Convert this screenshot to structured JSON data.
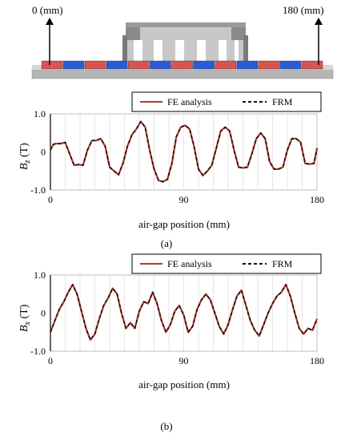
{
  "diagram": {
    "left_label": "0 (mm)",
    "right_label": "180 (mm)"
  },
  "colors": {
    "fe_line": "#b03a2e",
    "frm_line": "#111111",
    "magnet_red": "#d9534f",
    "magnet_blue": "#2a5bd7",
    "mover_gray": "#c8c8c8",
    "mover_dark": "#7a7a7a",
    "back_iron": "#b5b5b5",
    "grid": "#e6e6e6"
  },
  "chart_data": [
    {
      "type": "line",
      "id": "a",
      "caption": "(a)",
      "ylabel_main": "B",
      "ylabel_sub": "z",
      "ylabel_unit": " (T)",
      "xlabel": "air-gap position (mm)",
      "xlim": [
        0,
        180
      ],
      "ylim": [
        -1.0,
        1.0
      ],
      "xticks": [
        0,
        90,
        180
      ],
      "yticks": [
        1.0,
        0,
        -1.0
      ],
      "ytick_labels": [
        "1.0",
        "0",
        "-1.0"
      ],
      "grid": true,
      "legend_position": "top",
      "series": [
        {
          "name": "FE analysis",
          "style": "solid",
          "x": [
            0,
            2,
            4,
            7,
            10,
            13,
            16,
            19,
            22,
            25,
            28,
            31,
            34,
            37,
            40,
            43,
            46,
            49,
            52,
            55,
            58,
            61,
            64,
            67,
            70,
            73,
            76,
            79,
            82,
            85,
            88,
            91,
            94,
            97,
            100,
            103,
            106,
            109,
            112,
            115,
            118,
            121,
            124,
            127,
            130,
            133,
            136,
            139,
            142,
            145,
            148,
            151,
            154,
            157,
            160,
            163,
            166,
            169,
            172,
            175,
            178,
            180
          ],
          "values": [
            0.05,
            0.2,
            0.22,
            0.22,
            0.25,
            -0.05,
            -0.35,
            -0.33,
            -0.35,
            0.05,
            0.3,
            0.3,
            0.35,
            0.15,
            -0.4,
            -0.5,
            -0.6,
            -0.3,
            0.15,
            0.45,
            0.6,
            0.8,
            0.65,
            0.05,
            -0.45,
            -0.75,
            -0.78,
            -0.72,
            -0.3,
            0.4,
            0.65,
            0.7,
            0.6,
            0.15,
            -0.45,
            -0.62,
            -0.5,
            -0.35,
            0.1,
            0.55,
            0.65,
            0.55,
            0.05,
            -0.4,
            -0.42,
            -0.4,
            -0.05,
            0.35,
            0.5,
            0.35,
            -0.25,
            -0.45,
            -0.45,
            -0.4,
            0.05,
            0.35,
            0.35,
            0.25,
            -0.3,
            -0.32,
            -0.3,
            0.1
          ]
        },
        {
          "name": "FRM",
          "style": "dashed",
          "x": [
            0,
            2,
            4,
            7,
            10,
            13,
            16,
            19,
            22,
            25,
            28,
            31,
            34,
            37,
            40,
            43,
            46,
            49,
            52,
            55,
            58,
            61,
            64,
            67,
            70,
            73,
            76,
            79,
            82,
            85,
            88,
            91,
            94,
            97,
            100,
            103,
            106,
            109,
            112,
            115,
            118,
            121,
            124,
            127,
            130,
            133,
            136,
            139,
            142,
            145,
            148,
            151,
            154,
            157,
            160,
            163,
            166,
            169,
            172,
            175,
            178,
            180
          ],
          "values": [
            0.05,
            0.2,
            0.22,
            0.22,
            0.25,
            -0.05,
            -0.35,
            -0.33,
            -0.35,
            0.05,
            0.3,
            0.3,
            0.35,
            0.15,
            -0.4,
            -0.5,
            -0.6,
            -0.3,
            0.15,
            0.45,
            0.6,
            0.8,
            0.65,
            0.05,
            -0.45,
            -0.75,
            -0.78,
            -0.72,
            -0.3,
            0.4,
            0.65,
            0.7,
            0.6,
            0.15,
            -0.45,
            -0.62,
            -0.5,
            -0.35,
            0.1,
            0.55,
            0.65,
            0.55,
            0.05,
            -0.4,
            -0.42,
            -0.4,
            -0.05,
            0.35,
            0.5,
            0.35,
            -0.25,
            -0.45,
            -0.45,
            -0.4,
            0.05,
            0.35,
            0.35,
            0.25,
            -0.3,
            -0.32,
            -0.3,
            0.1
          ]
        }
      ]
    },
    {
      "type": "line",
      "id": "b",
      "caption": "(b)",
      "ylabel_main": "B",
      "ylabel_sub": "x",
      "ylabel_unit": " (T)",
      "xlabel": "air-gap position (mm)",
      "xlim": [
        0,
        180
      ],
      "ylim": [
        -1.0,
        1.0
      ],
      "xticks": [
        0,
        90,
        180
      ],
      "yticks": [
        1.0,
        0,
        -1.0
      ],
      "ytick_labels": [
        "1.0",
        "0",
        "-1.0"
      ],
      "grid": true,
      "legend_position": "top",
      "series": [
        {
          "name": "FE analysis",
          "style": "solid",
          "x": [
            0,
            3,
            6,
            9,
            12,
            15,
            18,
            21,
            24,
            27,
            30,
            33,
            36,
            39,
            42,
            45,
            48,
            51,
            54,
            57,
            60,
            63,
            66,
            69,
            72,
            75,
            78,
            81,
            84,
            87,
            90,
            93,
            96,
            99,
            102,
            105,
            108,
            111,
            114,
            117,
            120,
            123,
            126,
            129,
            132,
            135,
            138,
            141,
            144,
            147,
            150,
            153,
            156,
            159,
            162,
            165,
            168,
            171,
            174,
            177,
            180
          ],
          "values": [
            -0.5,
            -0.2,
            0.1,
            0.3,
            0.55,
            0.75,
            0.5,
            0.05,
            -0.4,
            -0.7,
            -0.55,
            -0.15,
            0.2,
            0.4,
            0.65,
            0.5,
            0.0,
            -0.4,
            -0.25,
            -0.4,
            0.05,
            0.3,
            0.25,
            0.55,
            0.25,
            -0.2,
            -0.5,
            -0.3,
            0.05,
            0.2,
            -0.05,
            -0.5,
            -0.35,
            0.1,
            0.35,
            0.5,
            0.35,
            0.0,
            -0.35,
            -0.55,
            -0.3,
            0.1,
            0.45,
            0.6,
            0.2,
            -0.2,
            -0.45,
            -0.6,
            -0.3,
            0.0,
            0.25,
            0.45,
            0.55,
            0.75,
            0.45,
            0.0,
            -0.4,
            -0.55,
            -0.4,
            -0.45,
            -0.15
          ]
        },
        {
          "name": "FRM",
          "style": "dashed",
          "x": [
            0,
            3,
            6,
            9,
            12,
            15,
            18,
            21,
            24,
            27,
            30,
            33,
            36,
            39,
            42,
            45,
            48,
            51,
            54,
            57,
            60,
            63,
            66,
            69,
            72,
            75,
            78,
            81,
            84,
            87,
            90,
            93,
            96,
            99,
            102,
            105,
            108,
            111,
            114,
            117,
            120,
            123,
            126,
            129,
            132,
            135,
            138,
            141,
            144,
            147,
            150,
            153,
            156,
            159,
            162,
            165,
            168,
            171,
            174,
            177,
            180
          ],
          "values": [
            -0.5,
            -0.2,
            0.1,
            0.3,
            0.55,
            0.75,
            0.5,
            0.05,
            -0.4,
            -0.7,
            -0.55,
            -0.15,
            0.2,
            0.4,
            0.65,
            0.5,
            0.0,
            -0.4,
            -0.25,
            -0.4,
            0.05,
            0.3,
            0.25,
            0.55,
            0.25,
            -0.2,
            -0.5,
            -0.3,
            0.05,
            0.2,
            -0.05,
            -0.5,
            -0.35,
            0.1,
            0.35,
            0.5,
            0.35,
            0.0,
            -0.35,
            -0.55,
            -0.3,
            0.1,
            0.45,
            0.6,
            0.2,
            -0.2,
            -0.45,
            -0.6,
            -0.3,
            0.0,
            0.25,
            0.45,
            0.55,
            0.75,
            0.45,
            0.0,
            -0.4,
            -0.55,
            -0.4,
            -0.45,
            -0.15
          ]
        }
      ]
    }
  ]
}
